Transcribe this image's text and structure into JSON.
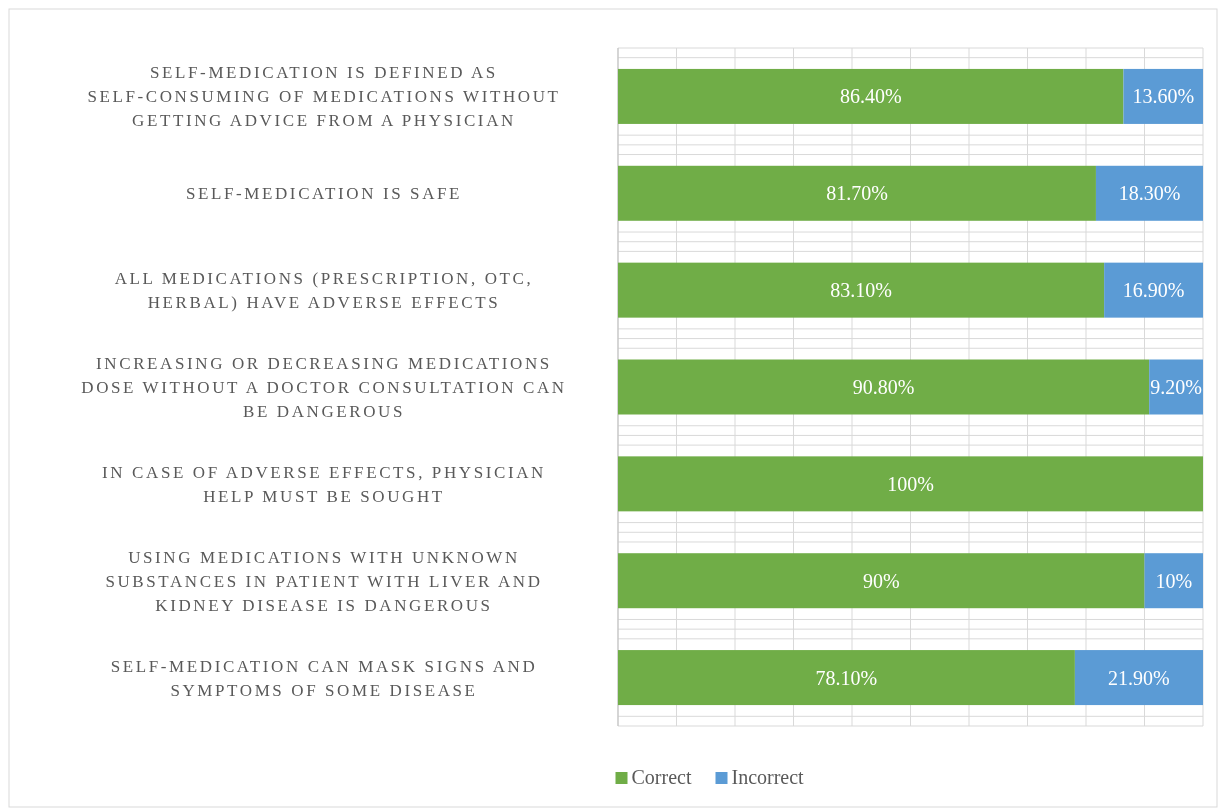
{
  "chart_data": {
    "type": "bar",
    "orientation": "horizontal",
    "stacked": true,
    "categories": [
      "SELF-MEDICATION IS DEFINED AS SELF-CONSUMING OF MEDICATIONS WITHOUT GETTING ADVICE FROM A PHYSICIAN",
      "SELF-MEDICATION IS SAFE",
      "ALL MEDICATIONS (PRESCRIPTION, OTC, HERBAL) HAVE ADVERSE EFFECTS",
      "INCREASING OR DECREASING MEDICATIONS DOSE WITHOUT A DOCTOR CONSULTATION CAN BE DANGEROUS",
      "IN CASE OF ADVERSE EFFECTS, PHYSICIAN HELP MUST BE SOUGHT",
      "USING MEDICATIONS WITH UNKNOWN SUBSTANCES IN PATIENT WITH LIVER AND KIDNEY DISEASE IS DANGEROUS",
      "SELF-MEDICATION CAN MASK SIGNS AND SYMPTOMS OF SOME DISEASE"
    ],
    "series": [
      {
        "name": "Correct",
        "color": "#70ad47",
        "values": [
          86.4,
          81.7,
          83.1,
          90.8,
          100,
          90,
          78.1
        ],
        "value_labels": [
          "86.40%",
          "81.70%",
          "83.10%",
          "90.80%",
          "100%",
          "90%",
          "78.10%"
        ]
      },
      {
        "name": "Incorrect",
        "color": "#5b9bd5",
        "values": [
          13.6,
          18.3,
          16.9,
          9.2,
          0,
          10,
          21.9
        ],
        "value_labels": [
          "13.60%",
          "18.30%",
          "16.90%",
          "9.20%",
          null,
          "10%",
          "21.90%"
        ]
      }
    ],
    "xlim": [
      0,
      100
    ],
    "xticks": [
      {
        "value": 0,
        "label": null
      },
      {
        "value": 10,
        "label": null
      },
      {
        "value": 20,
        "label": null
      },
      {
        "value": 30,
        "label": null
      },
      {
        "value": 40,
        "label": null
      },
      {
        "value": 50,
        "label": null
      },
      {
        "value": 60,
        "label": null
      },
      {
        "value": 70,
        "label": null
      },
      {
        "value": 80,
        "label": null
      },
      {
        "value": 90,
        "label": null
      },
      {
        "value": 100,
        "label": null
      }
    ],
    "tick_labels": "y",
    "grid": true,
    "legend": "bottom"
  }
}
